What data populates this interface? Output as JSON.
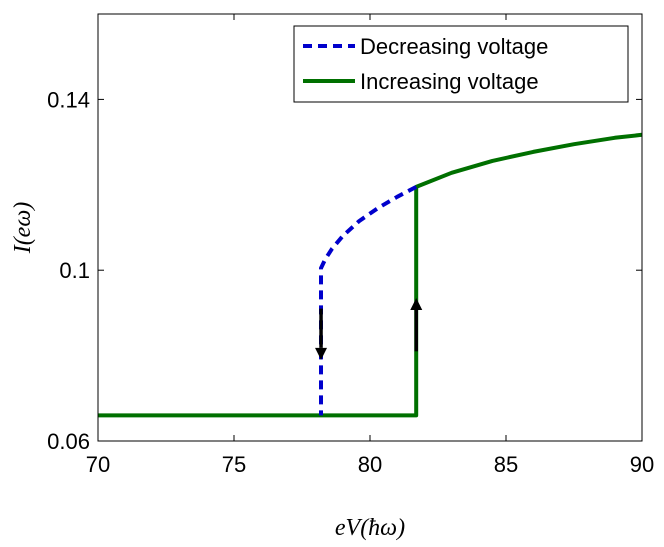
{
  "chart_data": {
    "type": "line",
    "title": "",
    "xlabel": "eV(ħω)",
    "ylabel": "I(eω)",
    "xlim": [
      70,
      90
    ],
    "ylim": [
      0.06,
      0.16
    ],
    "x_ticks": [
      70,
      75,
      80,
      85,
      90
    ],
    "x_tick_labels": [
      "70",
      "75",
      "80",
      "85",
      "90"
    ],
    "y_ticks": [
      0.06,
      0.1,
      0.14
    ],
    "y_tick_labels": [
      "0.06",
      "0.1",
      "0.14"
    ],
    "grid": false,
    "legend_position": "top-right",
    "series": [
      {
        "name": "Decreasing voltage",
        "style": "dashed",
        "color": "#0000cc",
        "x": [
          81.7,
          81.0,
          80.3,
          79.6,
          79.0,
          78.6,
          78.35,
          78.2,
          78.2,
          78.2
        ],
        "y": [
          0.1195,
          0.1172,
          0.1146,
          0.1115,
          0.108,
          0.105,
          0.1025,
          0.1005,
          0.085,
          0.066
        ]
      },
      {
        "name": "Increasing voltage",
        "style": "solid",
        "color": "#007000",
        "x": [
          70,
          78.2,
          81.7,
          81.7,
          81.7,
          83,
          84.5,
          86,
          87.5,
          89,
          90
        ],
        "y": [
          0.066,
          0.066,
          0.066,
          0.085,
          0.1195,
          0.1228,
          0.1256,
          0.1277,
          0.1295,
          0.131,
          0.1317
        ]
      }
    ],
    "annotations": [
      {
        "type": "arrow",
        "direction": "down",
        "x": 78.2,
        "y_from": 0.091,
        "y_to": 0.079,
        "color": "#000000"
      },
      {
        "type": "arrow",
        "direction": "up",
        "x": 81.7,
        "y_from": 0.081,
        "y_to": 0.0935,
        "color": "#000000"
      }
    ]
  }
}
